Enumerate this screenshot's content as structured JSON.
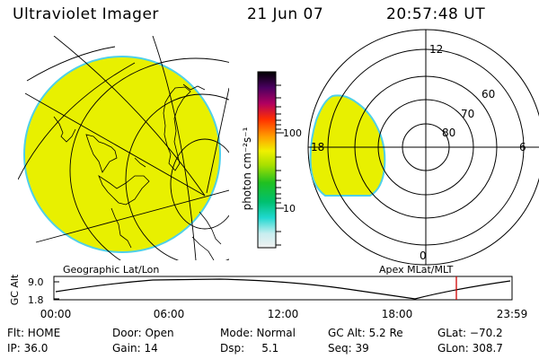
{
  "header": {
    "title": "Ultraviolet Imager",
    "date": "21 Jun 07",
    "time": "20:57:48 UT"
  },
  "colorbar": {
    "unit_label": "photon cm⁻²s⁻¹",
    "ticks": [
      "100",
      "10"
    ]
  },
  "map_labels": {
    "left": "Geographic Lat/Lon",
    "right": "Apex MLat/MLT"
  },
  "polar": {
    "mlt_labels": [
      "12",
      "18",
      "6",
      "0"
    ],
    "lat_labels": [
      "60",
      "70",
      "80"
    ]
  },
  "altitude_plot": {
    "ylabel": "GC Alt",
    "yticks": [
      "9.0",
      "1.8"
    ],
    "xticks": [
      "00:00",
      "06:00",
      "12:00",
      "18:00",
      "23:59"
    ]
  },
  "status": {
    "flt": "Flt: HOME",
    "ip": "IP: 36.0",
    "door": "Door: Open",
    "gain": "Gain: 14",
    "mode": "Mode: Normal",
    "dsp": "Dsp:     5.1",
    "gc_alt": "GC Alt: 5.2 Re",
    "seq": "Seq: 39",
    "glat": "GLat: −70.2",
    "glon": "GLon: 308.7"
  },
  "colors": {
    "image_fill": "#e8f000",
    "image_edge": "#4fd0e8",
    "marker": "#d00000"
  }
}
